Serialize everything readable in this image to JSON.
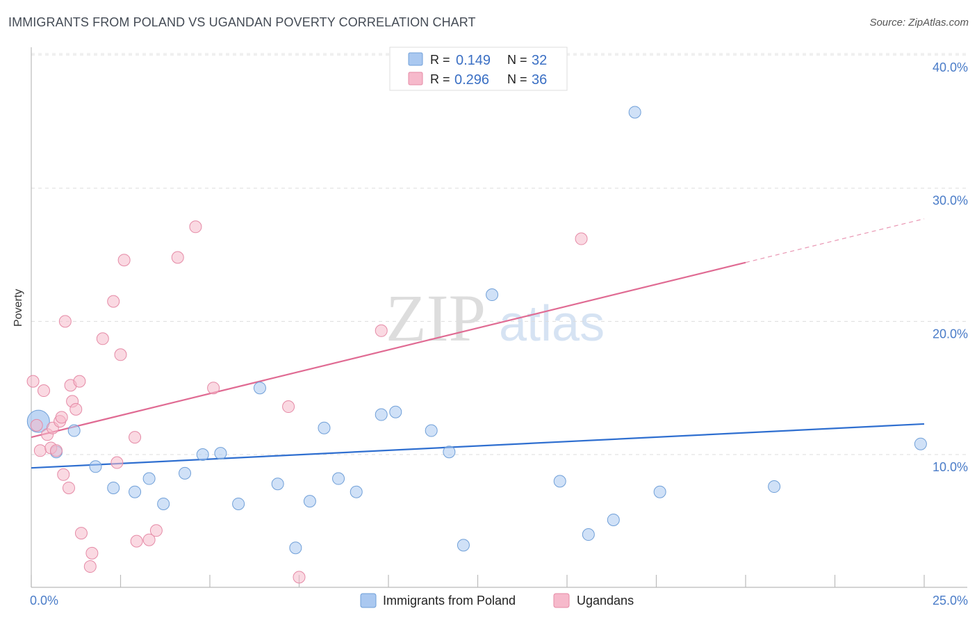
{
  "title": "IMMIGRANTS FROM POLAND VS UGANDAN POVERTY CORRELATION CHART",
  "source": "Source: ZipAtlas.com",
  "watermark": {
    "zip": "ZIP",
    "atlas": "atlas"
  },
  "legend_top": {
    "rows": [
      {
        "r_label": "R =",
        "r_value": "0.149",
        "n_label": "N =",
        "n_value": "32",
        "color": "#aac8f0"
      },
      {
        "r_label": "R =",
        "r_value": "0.296",
        "n_label": "N =",
        "n_value": "36",
        "color": "#f6b9cb"
      }
    ]
  },
  "chart_data": {
    "type": "scatter",
    "title": "IMMIGRANTS FROM POLAND VS UGANDAN POVERTY CORRELATION CHART",
    "xlabel": "",
    "ylabel": "Poverty",
    "xlim": [
      0,
      25
    ],
    "ylim": [
      0,
      40
    ],
    "x_tick_labels": [
      "0.0%",
      "25.0%"
    ],
    "y_ticks": [
      10,
      20,
      30,
      40
    ],
    "y_tick_labels": [
      "10.0%",
      "20.0%",
      "30.0%",
      "40.0%"
    ],
    "grid": true,
    "legend_position": "bottom-center",
    "series": [
      {
        "name": "Immigrants from Poland",
        "color": "#aac8f0",
        "stroke": "#6f9fd8",
        "line_color": "#2f6fd0",
        "trend": {
          "x0": 0,
          "y0": 9.0,
          "x1": 25,
          "y1": 12.3,
          "solid_until": 25
        },
        "points": [
          [
            0.2,
            12.5
          ],
          [
            0.7,
            10.2
          ],
          [
            1.2,
            11.8
          ],
          [
            1.8,
            9.1
          ],
          [
            2.3,
            7.5
          ],
          [
            2.9,
            7.2
          ],
          [
            3.3,
            8.2
          ],
          [
            3.7,
            6.3
          ],
          [
            4.3,
            8.6
          ],
          [
            4.8,
            10.0
          ],
          [
            5.3,
            10.1
          ],
          [
            5.8,
            6.3
          ],
          [
            6.4,
            15.0
          ],
          [
            6.9,
            7.8
          ],
          [
            7.4,
            3.0
          ],
          [
            7.8,
            6.5
          ],
          [
            8.2,
            12.0
          ],
          [
            8.6,
            8.2
          ],
          [
            9.1,
            7.2
          ],
          [
            9.8,
            13.0
          ],
          [
            10.2,
            13.2
          ],
          [
            11.2,
            11.8
          ],
          [
            11.7,
            10.2
          ],
          [
            12.1,
            3.2
          ],
          [
            12.9,
            22.0
          ],
          [
            14.8,
            8.0
          ],
          [
            15.6,
            4.0
          ],
          [
            16.3,
            5.1
          ],
          [
            16.9,
            35.7
          ],
          [
            17.6,
            7.2
          ],
          [
            20.8,
            7.6
          ],
          [
            24.9,
            10.8
          ]
        ]
      },
      {
        "name": "Ugandans",
        "color": "#f6b9cb",
        "stroke": "#e58aa6",
        "line_color": "#e06b93",
        "trend": {
          "x0": 0,
          "y0": 11.3,
          "x1": 25,
          "y1": 27.7,
          "solid_until": 20
        },
        "points": [
          [
            0.05,
            15.5
          ],
          [
            0.15,
            12.2
          ],
          [
            0.25,
            10.3
          ],
          [
            0.35,
            14.8
          ],
          [
            0.45,
            11.5
          ],
          [
            0.55,
            10.5
          ],
          [
            0.6,
            12.0
          ],
          [
            0.7,
            10.3
          ],
          [
            0.8,
            12.5
          ],
          [
            0.85,
            12.8
          ],
          [
            0.9,
            8.5
          ],
          [
            0.95,
            20.0
          ],
          [
            1.05,
            7.5
          ],
          [
            1.1,
            15.2
          ],
          [
            1.15,
            14.0
          ],
          [
            1.25,
            13.4
          ],
          [
            1.35,
            15.5
          ],
          [
            1.4,
            4.1
          ],
          [
            1.65,
            1.6
          ],
          [
            1.7,
            2.6
          ],
          [
            2.0,
            18.7
          ],
          [
            2.3,
            21.5
          ],
          [
            2.4,
            9.4
          ],
          [
            2.5,
            17.5
          ],
          [
            2.6,
            24.6
          ],
          [
            2.95,
            3.5
          ],
          [
            2.9,
            11.3
          ],
          [
            3.3,
            3.6
          ],
          [
            3.5,
            4.3
          ],
          [
            4.1,
            24.8
          ],
          [
            4.6,
            27.1
          ],
          [
            5.1,
            15.0
          ],
          [
            7.2,
            13.6
          ],
          [
            7.5,
            0.8
          ],
          [
            9.8,
            19.3
          ],
          [
            15.4,
            26.2
          ]
        ]
      }
    ]
  }
}
